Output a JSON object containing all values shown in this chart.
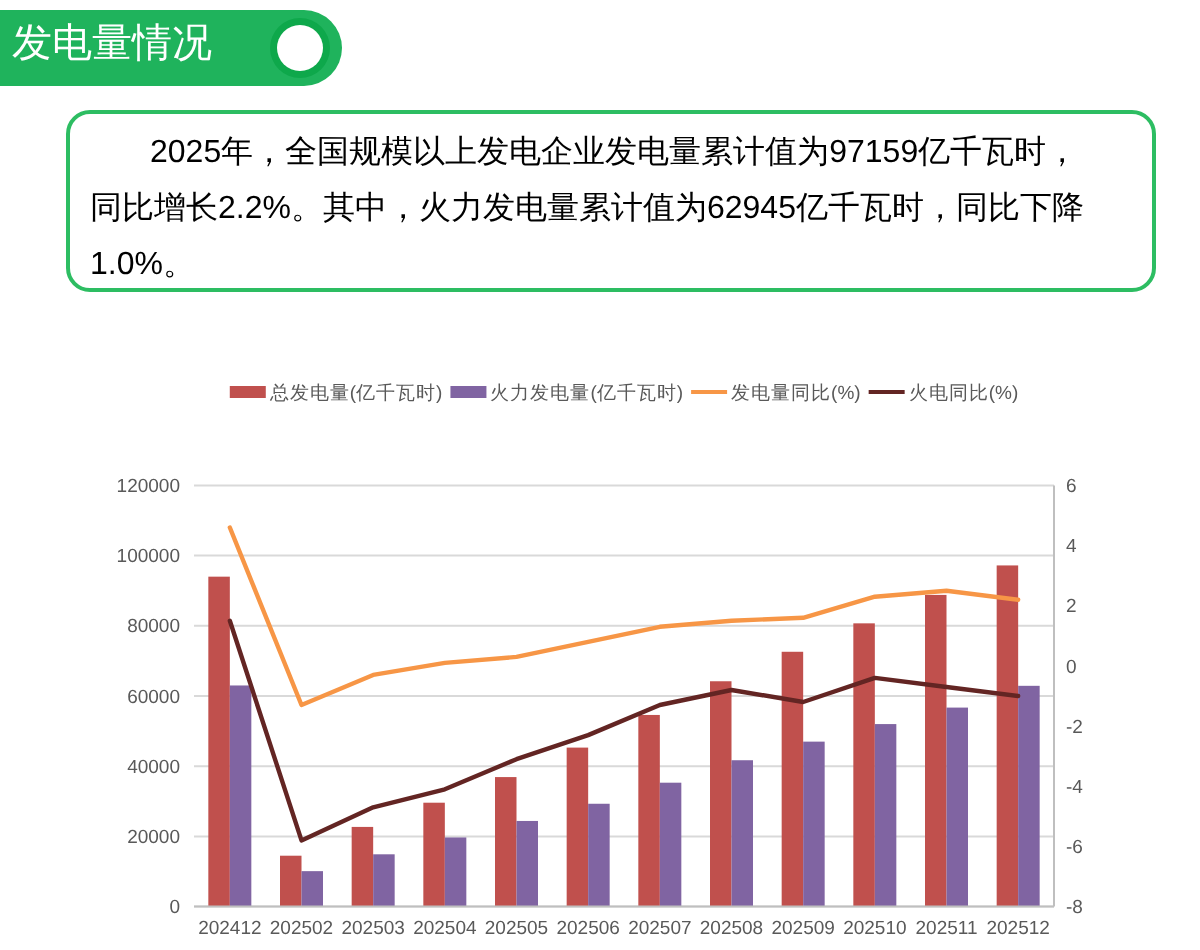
{
  "chart_data": {
    "type": "bar",
    "title": "发电量情况",
    "subtitle": "2025年，全国规模以上发电企业发电量累计值为97159亿千瓦时，同比增长2.2%。其中，火力发电量累计值为62945亿千瓦时，同比下降1.0%。",
    "categories": [
      "202412",
      "202502",
      "202503",
      "202504",
      "202505",
      "202506",
      "202507",
      "202508",
      "202509",
      "202510",
      "202511",
      "202512"
    ],
    "series": [
      {
        "name": "总发电量(亿千瓦时)",
        "color": "#c0504d",
        "values": [
          94000,
          14500,
          22700,
          29600,
          36900,
          45300,
          54600,
          64200,
          72600,
          80700,
          88800,
          97200
        ]
      },
      {
        "name": "火力发电量(亿千瓦时)",
        "color": "#8064a2",
        "values": [
          63000,
          10100,
          14900,
          19700,
          24400,
          29300,
          35300,
          41700,
          47000,
          52000,
          56700,
          62900
        ]
      },
      {
        "name": "发电量同比(%)",
        "type": "line",
        "axis": "y2",
        "color": "#f79646",
        "values": [
          4.6,
          -1.3,
          -0.3,
          0.1,
          0.3,
          0.8,
          1.3,
          1.5,
          1.6,
          2.3,
          2.5,
          2.2
        ]
      },
      {
        "name": "火电同比(%)",
        "type": "line",
        "axis": "y2",
        "color": "#632523",
        "values": [
          1.5,
          -5.8,
          -4.7,
          -4.1,
          -3.1,
          -2.3,
          -1.3,
          -0.8,
          -1.2,
          -0.4,
          -0.7,
          -1.0
        ]
      }
    ],
    "ylim": [
      0,
      120000
    ],
    "yticks": [
      0,
      20000,
      40000,
      60000,
      80000,
      100000,
      120000
    ],
    "y2lim": [
      -8,
      6
    ],
    "y2ticks": [
      -8,
      -6,
      -4,
      -2,
      0,
      2,
      4,
      6
    ],
    "grid": "y",
    "legend": "top"
  }
}
